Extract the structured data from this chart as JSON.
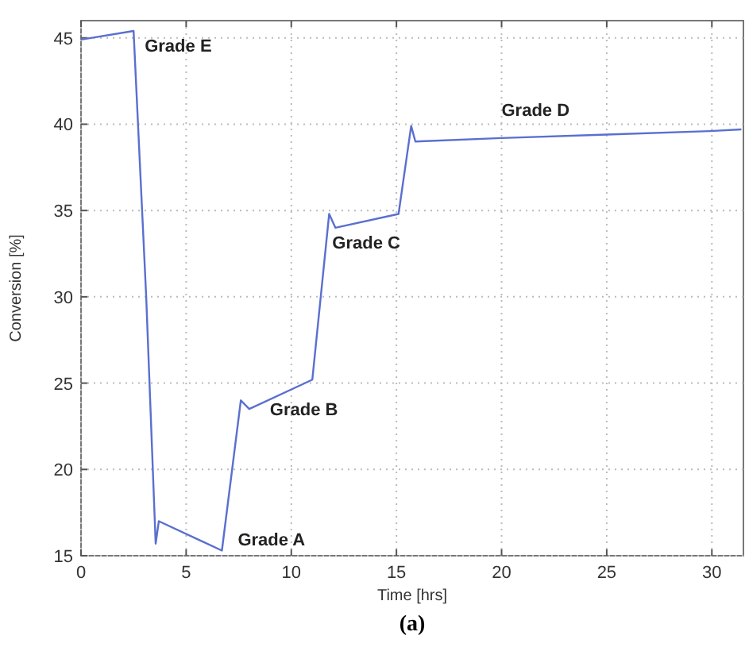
{
  "chart_data": {
    "type": "line",
    "xlabel": "Time [hrs]",
    "ylabel": "Conversion [%]",
    "x": [
      0,
      2.5,
      3.1,
      3.55,
      3.7,
      6.7,
      7.6,
      8.0,
      11.0,
      11.8,
      12.1,
      15.1,
      15.7,
      15.9,
      20.0,
      25.0,
      29.9,
      31.4
    ],
    "series": [
      {
        "color": "#5a6fd0",
        "values": [
          44.9,
          45.4,
          30,
          15.7,
          17.0,
          15.3,
          24.0,
          23.5,
          25.2,
          34.8,
          34.0,
          34.8,
          39.9,
          39.0,
          39.2,
          39.4,
          39.6,
          39.7
        ]
      }
    ],
    "xlim": [
      0,
      31.5
    ],
    "ylim": [
      15,
      46
    ],
    "xticks": [
      0,
      5,
      10,
      15,
      20,
      25,
      30
    ],
    "yticks": [
      15,
      20,
      25,
      30,
      35,
      40,
      45
    ],
    "grid": true,
    "line_style": "solid",
    "marker": "none",
    "annotations": [
      {
        "text": "Grade E",
        "x": 2.5,
        "y": 45.4
      },
      {
        "text": "Grade A",
        "x": 6.7,
        "y": 15.3
      },
      {
        "text": "Grade B",
        "x": 8.0,
        "y": 23.5
      },
      {
        "text": "Grade C",
        "x": 12.1,
        "y": 34.0
      },
      {
        "text": "Grade D",
        "x": 20.0,
        "y": 39.2
      },
      "(a)"
    ]
  }
}
